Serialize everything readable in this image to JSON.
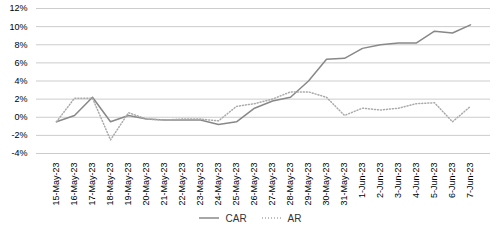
{
  "chart_data": {
    "type": "line",
    "categories": [
      "15-May-23",
      "16-May-23",
      "17-May-23",
      "18-May-23",
      "19-May-23",
      "20-May-23",
      "21-May-23",
      "22-May-23",
      "23-May-23",
      "24-May-23",
      "25-May-23",
      "26-May-23",
      "27-May-23",
      "28-May-23",
      "29-May-23",
      "30-May-23",
      "31-May-23",
      "1-Jun-23",
      "2-Jun-23",
      "3-Jun-23",
      "4-Jun-23",
      "5-Jun-23",
      "6-Jun-23",
      "7-Jun-23"
    ],
    "series": [
      {
        "name": "CAR",
        "color": "#888888",
        "line_style": "solid",
        "values": [
          -0.005,
          0.002,
          0.022,
          -0.005,
          0.002,
          -0.002,
          -0.003,
          -0.003,
          -0.003,
          -0.008,
          -0.005,
          0.01,
          0.018,
          0.022,
          0.04,
          0.064,
          0.065,
          0.076,
          0.08,
          0.082,
          0.082,
          0.095,
          0.093,
          0.102
        ]
      },
      {
        "name": "AR",
        "color": "#aaaaaa",
        "line_style": "dotted",
        "values": [
          -0.005,
          0.021,
          0.021,
          -0.025,
          0.005,
          -0.002,
          -0.003,
          -0.002,
          -0.002,
          -0.004,
          0.012,
          0.015,
          0.02,
          0.028,
          0.028,
          0.022,
          0.002,
          0.01,
          0.008,
          0.01,
          0.015,
          0.016,
          -0.005,
          0.012
        ]
      }
    ],
    "ylim": [
      -0.04,
      0.12
    ],
    "yticks": [
      {
        "value": -0.04,
        "label": "-4%"
      },
      {
        "value": -0.02,
        "label": "-2%"
      },
      {
        "value": 0.0,
        "label": "0%"
      },
      {
        "value": 0.02,
        "label": "2%"
      },
      {
        "value": 0.04,
        "label": "4%"
      },
      {
        "value": 0.06,
        "label": "6%"
      },
      {
        "value": 0.08,
        "label": "8%"
      },
      {
        "value": 0.1,
        "label": "10%"
      },
      {
        "value": 0.12,
        "label": "12%"
      }
    ],
    "grid": true,
    "legend": "bottom"
  }
}
